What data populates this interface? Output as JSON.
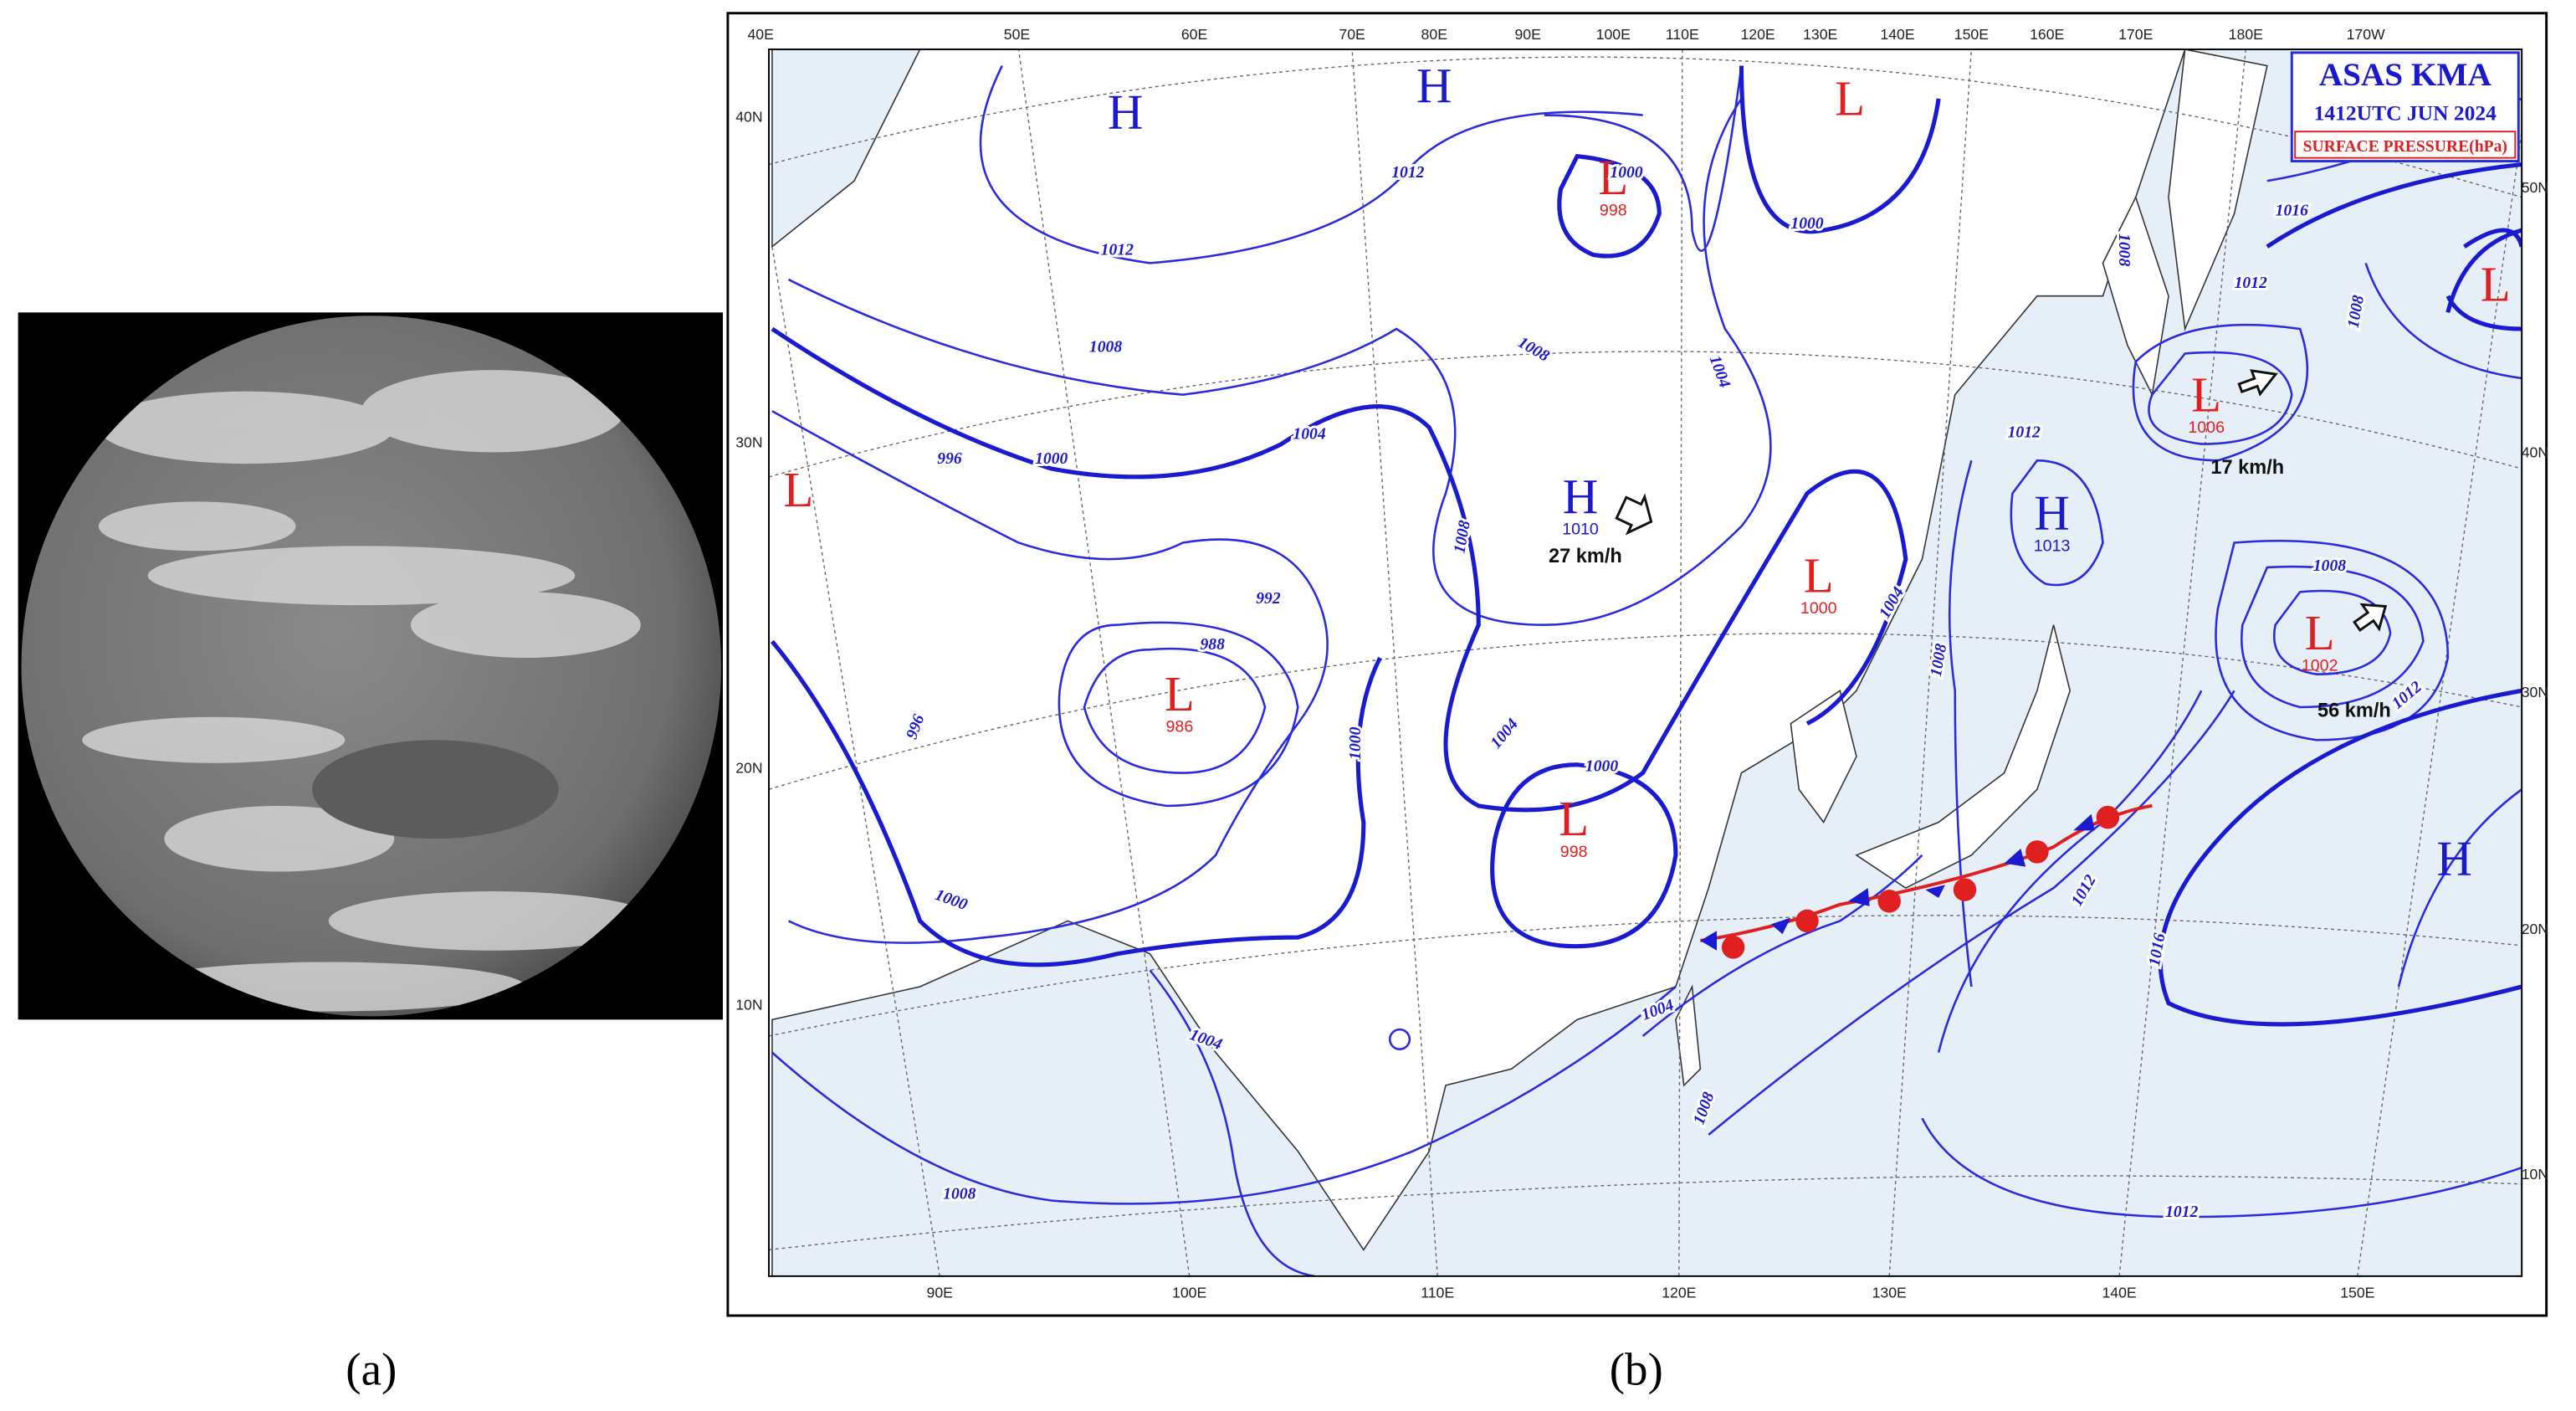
{
  "captions": [
    "(a)",
    "(b)"
  ],
  "map": {
    "title": "ASAS KMA",
    "time": "1412UTC JUN 2024",
    "product": "SURFACE PRESSURE(hPa)",
    "top_lon_labels": [
      "40E",
      "50E",
      "60E",
      "70E",
      "80E",
      "90E",
      "100E",
      "110E",
      "120E",
      "130E",
      "140E",
      "150E",
      "160E",
      "170E",
      "180E",
      "170W"
    ],
    "bottom_lon_labels": [
      "90E",
      "100E",
      "110E",
      "120E",
      "130E",
      "140E",
      "150E"
    ],
    "left_lat_labels": [
      "40N",
      "30N",
      "20N",
      "10N"
    ],
    "right_lat_labels": [
      "50N",
      "40N",
      "30N",
      "20N",
      "10N"
    ],
    "systems": [
      {
        "symbol": "H",
        "color": "#1a1acc"
      },
      {
        "symbol": "H",
        "color": "#1a1acc"
      },
      {
        "symbol": "L",
        "color": "#e02020"
      },
      {
        "symbol": "L",
        "pressure": "998",
        "color": "#e02020"
      },
      {
        "symbol": "H",
        "pressure": "1010",
        "color": "#1a1acc"
      },
      {
        "symbol": "L",
        "pressure": "1000",
        "color": "#e02020"
      },
      {
        "symbol": "H",
        "pressure": "1013",
        "color": "#1a1acc"
      },
      {
        "symbol": "L",
        "pressure": "1006",
        "color": "#e02020"
      },
      {
        "symbol": "L",
        "pressure": "1002",
        "color": "#e02020"
      },
      {
        "symbol": "L",
        "color": "#e02020"
      },
      {
        "symbol": "L",
        "color": "#e02020"
      },
      {
        "symbol": "L",
        "pressure": "986",
        "color": "#e02020"
      },
      {
        "symbol": "L",
        "pressure": "998",
        "color": "#e02020"
      },
      {
        "symbol": "H",
        "color": "#1a1acc"
      }
    ],
    "speeds": [
      "27 km/h",
      "17 km/h",
      "56 km/h"
    ],
    "isobar_labels": [
      "1012",
      "1012",
      "1008",
      "1004",
      "1000",
      "996",
      "992",
      "988",
      "996",
      "1000",
      "1004",
      "1008",
      "1000",
      "1008",
      "1004",
      "1008",
      "1004",
      "1000",
      "1000",
      "1000",
      "1004",
      "1008",
      "1008",
      "1012",
      "1016",
      "1012",
      "1008",
      "1008",
      "1012",
      "1016",
      "1012",
      "1004",
      "1008",
      "1012"
    ]
  }
}
